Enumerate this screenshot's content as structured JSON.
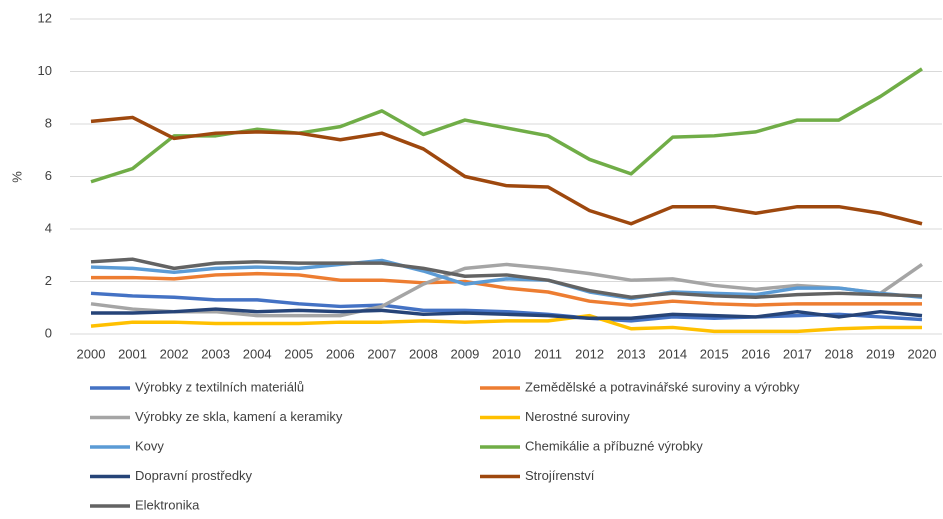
{
  "chart_data": {
    "type": "line",
    "y_label": "%",
    "categories": [
      "2000",
      "2001",
      "2002",
      "2003",
      "2004",
      "2005",
      "2006",
      "2007",
      "2008",
      "2009",
      "2010",
      "2011",
      "2012",
      "2013",
      "2014",
      "2015",
      "2016",
      "2017",
      "2018",
      "2019",
      "2020"
    ],
    "ylim": [
      0,
      12
    ],
    "yticks": [
      0,
      2,
      4,
      6,
      8,
      10,
      12
    ],
    "grid": true,
    "legend": "bottom",
    "series": [
      {
        "name": "Výrobky z textilních materiálů",
        "color": "#4472c4",
        "values": [
          1.55,
          1.45,
          1.4,
          1.3,
          1.3,
          1.15,
          1.05,
          1.1,
          0.9,
          0.9,
          0.85,
          0.75,
          0.6,
          0.5,
          0.65,
          0.6,
          0.65,
          0.7,
          0.75,
          0.65,
          0.55
        ]
      },
      {
        "name": "Zemědělské a potravinářské suroviny a výrobky",
        "color": "#ed7d31",
        "values": [
          2.15,
          2.15,
          2.1,
          2.25,
          2.3,
          2.25,
          2.05,
          2.05,
          1.95,
          2.0,
          1.75,
          1.6,
          1.25,
          1.1,
          1.25,
          1.15,
          1.1,
          1.15,
          1.15,
          1.15,
          1.15
        ]
      },
      {
        "name": "Výrobky ze skla, kamení a keramiky",
        "color": "#a5a5a5",
        "values": [
          1.15,
          0.95,
          0.85,
          0.85,
          0.7,
          0.7,
          0.7,
          1.05,
          1.9,
          2.5,
          2.65,
          2.5,
          2.3,
          2.05,
          2.1,
          1.85,
          1.7,
          1.85,
          1.75,
          1.55,
          2.65
        ]
      },
      {
        "name": "Nerostné suroviny",
        "color": "#ffc000",
        "values": [
          0.3,
          0.45,
          0.45,
          0.4,
          0.4,
          0.4,
          0.45,
          0.45,
          0.5,
          0.45,
          0.5,
          0.5,
          0.7,
          0.2,
          0.25,
          0.1,
          0.1,
          0.1,
          0.2,
          0.25,
          0.25
        ]
      },
      {
        "name": "Kovy",
        "color": "#5b9bd5",
        "values": [
          2.55,
          2.5,
          2.35,
          2.5,
          2.55,
          2.5,
          2.65,
          2.8,
          2.4,
          1.9,
          2.1,
          2.05,
          1.6,
          1.35,
          1.6,
          1.55,
          1.5,
          1.75,
          1.75,
          1.55,
          1.4
        ]
      },
      {
        "name": "Chemikálie a příbuzné výrobky",
        "color": "#70ad47",
        "values": [
          5.8,
          6.3,
          7.55,
          7.55,
          7.8,
          7.65,
          7.9,
          8.5,
          7.6,
          8.15,
          7.85,
          7.55,
          6.65,
          6.1,
          7.5,
          7.55,
          7.7,
          8.15,
          8.15,
          9.05,
          10.1
        ]
      },
      {
        "name": "Dopravní prostředky",
        "color": "#264478",
        "values": [
          0.8,
          0.8,
          0.85,
          0.95,
          0.85,
          0.9,
          0.85,
          0.9,
          0.75,
          0.8,
          0.75,
          0.7,
          0.6,
          0.6,
          0.75,
          0.7,
          0.65,
          0.85,
          0.65,
          0.85,
          0.7
        ]
      },
      {
        "name": "Strojírenství",
        "color": "#9e480e",
        "values": [
          8.1,
          8.25,
          7.45,
          7.65,
          7.7,
          7.65,
          7.4,
          7.65,
          7.05,
          6.0,
          5.65,
          5.6,
          4.7,
          4.2,
          4.85,
          4.85,
          4.6,
          4.85,
          4.85,
          4.6,
          4.2
        ]
      },
      {
        "name": "Elektronika",
        "color": "#636363",
        "values": [
          2.75,
          2.85,
          2.5,
          2.7,
          2.75,
          2.7,
          2.7,
          2.7,
          2.5,
          2.2,
          2.25,
          2.05,
          1.65,
          1.4,
          1.55,
          1.45,
          1.4,
          1.5,
          1.55,
          1.5,
          1.45
        ]
      }
    ]
  }
}
